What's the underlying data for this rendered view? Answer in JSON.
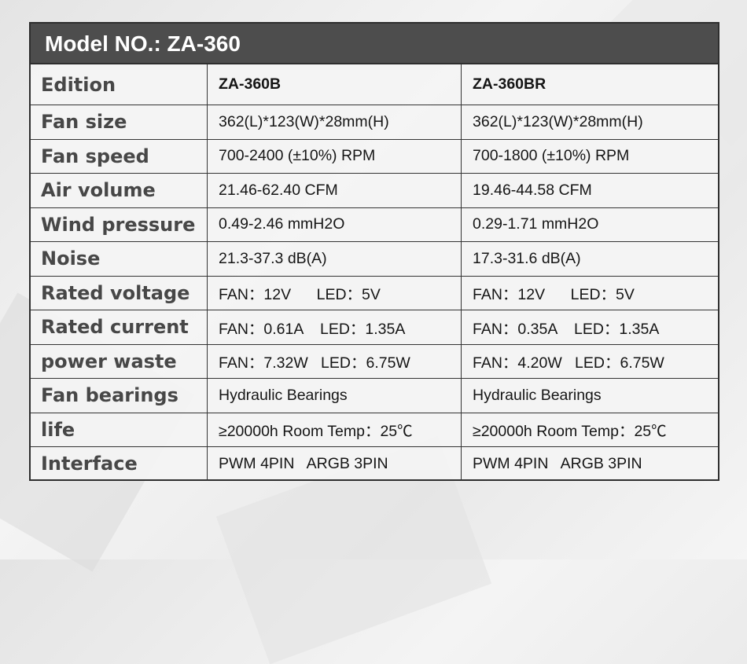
{
  "title": "Model NO.:  ZA-360",
  "rows": [
    {
      "label": "Edition",
      "b": "ZA-360B",
      "br": "ZA-360BR"
    },
    {
      "label": "Fan size",
      "b": "362(L)*123(W)*28mm(H)",
      "br": "362(L)*123(W)*28mm(H)"
    },
    {
      "label": "Fan speed",
      "b": "700-2400 (±10%) RPM",
      "br": "700-1800 (±10%) RPM"
    },
    {
      "label": "Air volume",
      "b": "21.46-62.40 CFM",
      "br": "19.46-44.58 CFM"
    },
    {
      "label": "Wind pressure",
      "b": "0.49-2.46 mmH2O",
      "br": "0.29-1.71 mmH2O"
    },
    {
      "label": "Noise",
      "b": "21.3-37.3 dB(A)",
      "br": "17.3-31.6 dB(A)"
    },
    {
      "label": "Rated voltage",
      "b": "FAN：12V      LED：5V",
      "br": "FAN：12V      LED：5V"
    },
    {
      "label": "Rated current",
      "b": "FAN：0.61A    LED：1.35A",
      "br": "FAN：0.35A    LED：1.35A"
    },
    {
      "label": "power waste",
      "b": "FAN：7.32W   LED：6.75W",
      "br": "FAN：4.20W   LED：6.75W"
    },
    {
      "label": "Fan bearings",
      "b": "Hydraulic Bearings",
      "br": "Hydraulic Bearings"
    },
    {
      "label": "life",
      "b": "≥20000h Room Temp：25℃",
      "br": "≥20000h Room Temp：25℃"
    },
    {
      "label": "Interface",
      "b": "PWM 4PIN   ARGB 3PIN",
      "br": "PWM 4PIN   ARGB 3PIN"
    }
  ]
}
